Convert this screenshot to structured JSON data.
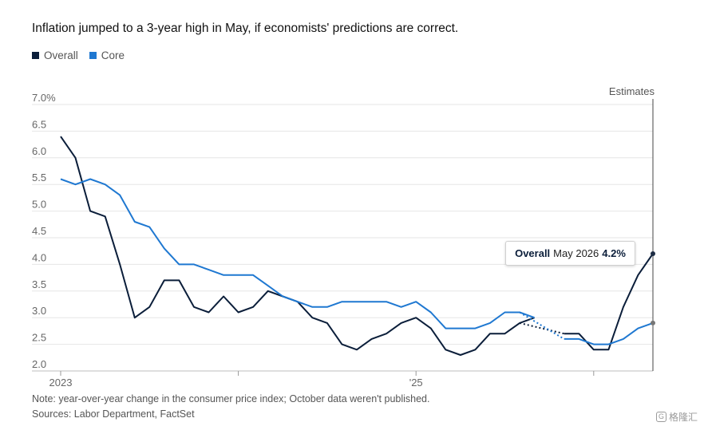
{
  "title": "Inflation jumped to a 3-year high in May, if economists' predictions are correct.",
  "legend": [
    {
      "label": "Overall",
      "color": "#0b1e3a"
    },
    {
      "label": "Core",
      "color": "#1f78d1"
    }
  ],
  "notes": {
    "note": "Note: year-over-year change in the consumer price index; October data weren't published.",
    "sources": "Sources: Labor Department, FactSet"
  },
  "estimates_label": "Estimates",
  "tooltip": {
    "series": "Overall",
    "date": "May 2026",
    "value": "4.2%"
  },
  "watermark": "格隆汇",
  "chart_data": {
    "type": "line",
    "ylim": [
      2.0,
      7.0
    ],
    "y_ticks": [
      "7.0%",
      "6.5",
      "6.0",
      "5.5",
      "5.0",
      "4.5",
      "4.0",
      "3.5",
      "3.0",
      "2.5",
      "2.0"
    ],
    "x_tick_labels": [
      {
        "label": "2023",
        "month": 0
      },
      {
        "label": "",
        "month": 12
      },
      {
        "label": "'25",
        "month": 24
      },
      {
        "label": "",
        "month": 36
      }
    ],
    "x_domain": [
      0,
      40
    ],
    "estimate_start_month": 40,
    "gap_months": [
      32,
      33
    ],
    "series": [
      {
        "name": "Overall",
        "color": "#0b1e3a",
        "values": [
          6.4,
          6.0,
          5.0,
          4.9,
          4.0,
          3.0,
          3.2,
          3.7,
          3.7,
          3.2,
          3.1,
          3.4,
          3.1,
          3.2,
          3.5,
          3.4,
          3.3,
          3.0,
          2.9,
          2.5,
          2.4,
          2.6,
          2.7,
          2.9,
          3.0,
          2.8,
          2.4,
          2.3,
          2.4,
          2.7,
          2.7,
          2.9,
          3.0,
          null,
          2.7,
          2.7,
          2.4,
          2.4,
          3.2,
          3.8,
          4.2
        ]
      },
      {
        "name": "Core",
        "color": "#1f78d1",
        "values": [
          5.6,
          5.5,
          5.6,
          5.5,
          5.3,
          4.8,
          4.7,
          4.3,
          4.0,
          4.0,
          3.9,
          3.8,
          3.8,
          3.8,
          3.6,
          3.4,
          3.3,
          3.2,
          3.2,
          3.3,
          3.3,
          3.3,
          3.3,
          3.2,
          3.3,
          3.1,
          2.8,
          2.8,
          2.8,
          2.9,
          3.1,
          3.1,
          3.0,
          null,
          2.6,
          2.6,
          2.5,
          2.5,
          2.6,
          2.8,
          2.9
        ]
      }
    ]
  }
}
